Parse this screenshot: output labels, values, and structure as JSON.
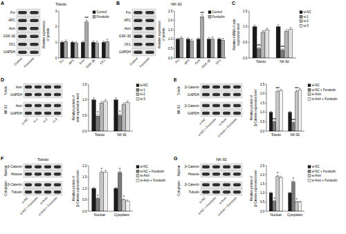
{
  "chart_data": [
    {
      "panel": "A",
      "type": "bar",
      "title": "Toledo",
      "blot": {
        "groups": [
          {
            "rows": [
              "Frz",
              "APC",
              "Axin",
              "GSK-3β",
              "CK1",
              "GAPDH"
            ]
          }
        ],
        "lanes": [
          "Control",
          "Forskolin"
        ]
      },
      "y_label": "Relative expression of protein",
      "categories": [
        "Frz",
        "APC",
        "Axin",
        "GSK-3β",
        "CK1"
      ],
      "series": [
        {
          "name": "Control",
          "color": "#1a1a1a",
          "values": [
            1,
            1,
            1,
            1,
            1
          ],
          "errors": [
            0.08,
            0.07,
            0.08,
            0.1,
            0.08
          ]
        },
        {
          "name": "Forskolin",
          "color": "#a6a6a6",
          "values": [
            1.05,
            0.95,
            2.3,
            0.95,
            1.05
          ],
          "errors": [
            0.1,
            0.08,
            0.12,
            0.12,
            0.15
          ]
        }
      ],
      "ylim": [
        0,
        3
      ],
      "yticks": [
        0,
        1,
        2,
        3
      ],
      "legend": "upper right",
      "grid": false,
      "annotations": [
        {
          "text": "***",
          "category": "Axin",
          "series": "Forskolin"
        }
      ]
    },
    {
      "panel": "B",
      "type": "bar",
      "title": "NK-92",
      "blot": {
        "groups": [
          {
            "rows": [
              "Frz",
              "APC",
              "Axin",
              "GSK-3β",
              "CK1",
              "GAPDH"
            ]
          }
        ],
        "lanes": [
          "Control",
          "Forskolin"
        ]
      },
      "y_label": "Relative expression of protein",
      "categories": [
        "Frz",
        "APC",
        "Axin",
        "GSK-3β",
        "CK1"
      ],
      "series": [
        {
          "name": "Control",
          "color": "#1a1a1a",
          "values": [
            1,
            1,
            1,
            1,
            1
          ],
          "errors": [
            0.06,
            0.07,
            0.06,
            0.08,
            0.07
          ]
        },
        {
          "name": "Forskolin",
          "color": "#a6a6a6",
          "values": [
            1.05,
            0.9,
            2.2,
            1.0,
            0.95
          ],
          "errors": [
            0.08,
            0.1,
            0.1,
            0.12,
            0.1
          ]
        }
      ],
      "ylim": [
        0,
        2.5
      ],
      "yticks": [
        {
          "value": 0,
          "label": "0.0"
        },
        0.5,
        {
          "value": 1,
          "label": "1.0"
        },
        1.5,
        {
          "value": 2,
          "label": "2.0"
        },
        2.5
      ],
      "legend": "upper right",
      "grid": false,
      "annotations": [
        {
          "text": "***",
          "category": "Axin",
          "series": "Forskolin"
        }
      ]
    },
    {
      "panel": "C",
      "type": "bar",
      "y_label": "Relative mRNA of axin expression level",
      "categories": [
        "Toledo",
        "NK-92"
      ],
      "series": [
        {
          "name": "si-NC",
          "color": "#1a1a1a",
          "values": [
            1,
            1
          ],
          "errors": [
            0.05,
            0.06
          ]
        },
        {
          "name": "si-1",
          "color": "#7a7a7a",
          "values": [
            0.3,
            0.25
          ],
          "errors": [
            0.04,
            0.04
          ]
        },
        {
          "name": "si-2",
          "color": "#b5b5b5",
          "values": [
            0.82,
            0.85
          ],
          "errors": [
            0.05,
            0.05
          ]
        },
        {
          "name": "si-3",
          "color": "#e0e0e0",
          "values": [
            0.9,
            0.92
          ],
          "errors": [
            0.05,
            0.05
          ]
        }
      ],
      "ylim": [
        0,
        1.5
      ],
      "yticks": [
        {
          "value": 0,
          "label": "0.0"
        },
        0.5,
        {
          "value": 1,
          "label": "1.0"
        },
        1.5
      ],
      "legend": "right",
      "grid": false,
      "annotations": [
        {
          "text": "***",
          "category": "Toledo",
          "series": "si-1"
        },
        {
          "text": "***",
          "category": "NK-92",
          "series": "si-1"
        }
      ]
    },
    {
      "panel": "D",
      "type": "bar",
      "blot": {
        "groups": [
          {
            "label": "Toledo",
            "rows": [
              "Axin",
              "GAPDH"
            ]
          },
          {
            "label": "NK-92",
            "rows": [
              "Axin",
              "GAPDH"
            ]
          }
        ],
        "lanes": [
          "si-NC",
          "si-1",
          "si-2",
          "si-3"
        ]
      },
      "y_label": "Relative protein of axin expression level",
      "categories": [
        "Toledo",
        "NK-92"
      ],
      "series": [
        {
          "name": "si-NC",
          "color": "#1a1a1a",
          "values": [
            1,
            1
          ],
          "errors": [
            0.06,
            0.06
          ]
        },
        {
          "name": "si-1",
          "color": "#7a7a7a",
          "values": [
            0.48,
            0.5
          ],
          "errors": [
            0.05,
            0.05
          ]
        },
        {
          "name": "si-2",
          "color": "#b5b5b5",
          "values": [
            0.9,
            0.85
          ],
          "errors": [
            0.05,
            0.05
          ]
        },
        {
          "name": "si-3",
          "color": "#e0e0e0",
          "values": [
            0.95,
            0.92
          ],
          "errors": [
            0.05,
            0.05
          ]
        }
      ],
      "ylim": [
        0,
        1.5
      ],
      "yticks": [
        {
          "value": 0,
          "label": "0.0"
        },
        0.5,
        {
          "value": 1,
          "label": "1.0"
        },
        1.5
      ],
      "legend": "right",
      "grid": false,
      "annotations": [
        {
          "text": "*",
          "category": "Toledo",
          "series": "si-1"
        },
        {
          "text": "*",
          "category": "NK-92",
          "series": "si-1"
        }
      ]
    },
    {
      "panel": "E",
      "type": "bar",
      "blot": {
        "groups": [
          {
            "label": "Toledo",
            "rows": [
              "β-Catenin",
              "GAPDH"
            ]
          },
          {
            "label": "NK-92",
            "rows": [
              "β-Catenin",
              "GAPDH"
            ]
          }
        ],
        "lanes": [
          "si-NC",
          "si-NC + Forskolin",
          "si-Axin",
          "si-Axin + Forskolin"
        ]
      },
      "y_label": "Relative protein of β-Catenin expression level",
      "categories": [
        "Toledo",
        "NK-92"
      ],
      "series": [
        {
          "name": "si-NC",
          "color": "#1a1a1a",
          "values": [
            1,
            1
          ],
          "errors": [
            0.05,
            0.05
          ]
        },
        {
          "name": "si-NC + Forskolin",
          "color": "#7a7a7a",
          "values": [
            0.5,
            0.45
          ],
          "errors": [
            0.04,
            0.04
          ]
        },
        {
          "name": "si-Axin",
          "color": "#c8c8c8",
          "values": [
            2.1,
            2.1
          ],
          "errors": [
            0.08,
            0.08
          ]
        },
        {
          "name": "si-Axin + Forskolin",
          "color": "#efefef",
          "values": [
            2.15,
            2.2
          ],
          "errors": [
            0.08,
            0.08
          ]
        }
      ],
      "ylim": [
        0,
        2.5
      ],
      "yticks": [
        {
          "value": 0,
          "label": "0.0"
        },
        0.5,
        {
          "value": 1,
          "label": "1.0"
        },
        1.5,
        {
          "value": 2,
          "label": "2.0"
        },
        2.5
      ],
      "legend": "right",
      "grid": false,
      "annotations": [
        {
          "text": "***",
          "category": "Toledo",
          "series": "si-NC + Forskolin"
        },
        {
          "text": "***",
          "category": "Toledo",
          "series": "si-Axin"
        },
        {
          "text": "***",
          "category": "NK-92",
          "series": "si-NC + Forskolin"
        },
        {
          "text": "***",
          "category": "NK-92",
          "series": "si-Axin"
        }
      ]
    },
    {
      "panel": "F",
      "type": "bar",
      "title": "Toledo",
      "blot": {
        "groups": [
          {
            "label": "Nuclear",
            "rows": [
              "β-Catenin",
              "Histone"
            ]
          },
          {
            "label": "Cytoplasm",
            "rows": [
              "β-Catenin",
              "Tubulin"
            ]
          }
        ],
        "lanes": [
          "si-NC",
          "si-NC + Forskolin",
          "si-Axin",
          "si-Axin + Forskolin"
        ]
      },
      "y_label": "Relative protein of β-Catenin expression level",
      "categories": [
        "Nuclear",
        "Cytoplasm"
      ],
      "series": [
        {
          "name": "si-NC",
          "color": "#1a1a1a",
          "values": [
            1,
            1
          ],
          "errors": [
            0.05,
            0.05
          ]
        },
        {
          "name": "si-NC + Forskolin",
          "color": "#7a7a7a",
          "values": [
            0.55,
            1.7
          ],
          "errors": [
            0.04,
            0.07
          ]
        },
        {
          "name": "si-Axin",
          "color": "#c8c8c8",
          "values": [
            1.7,
            0.5
          ],
          "errors": [
            0.07,
            0.04
          ]
        },
        {
          "name": "si-Axin + Forskolin",
          "color": "#efefef",
          "values": [
            1.72,
            0.45
          ],
          "errors": [
            0.07,
            0.04
          ]
        }
      ],
      "ylim": [
        0,
        2
      ],
      "yticks": [
        {
          "value": 0,
          "label": "0.0"
        },
        0.5,
        {
          "value": 1,
          "label": "1.0"
        },
        1.5,
        {
          "value": 2,
          "label": "2.0"
        }
      ],
      "legend": "right",
      "grid": false,
      "annotations": [
        {
          "text": "*",
          "category": "Nuclear",
          "series": "si-NC + Forskolin"
        },
        {
          "text": "*",
          "category": "Nuclear",
          "series": "si-Axin"
        },
        {
          "text": "*",
          "category": "Cytoplasm",
          "series": "si-NC + Forskolin"
        },
        {
          "text": "*",
          "category": "Cytoplasm",
          "series": "si-Axin"
        }
      ]
    },
    {
      "panel": "G",
      "type": "bar",
      "title": "NK-92",
      "blot": {
        "groups": [
          {
            "label": "Nuclear",
            "rows": [
              "β-Catenin",
              "Histone"
            ]
          },
          {
            "label": "Cytoplasm",
            "rows": [
              "β-Catenin",
              "Tubulin"
            ]
          }
        ],
        "lanes": [
          "si-NC",
          "si-NC + Forskolin",
          "si-Axin",
          "si-Axin + Forskolin"
        ]
      },
      "y_label": "Relative protein of β-Catenin expression level",
      "categories": [
        "Nuclear",
        "Cytoplasm"
      ],
      "series": [
        {
          "name": "si-NC",
          "color": "#1a1a1a",
          "values": [
            1,
            1
          ],
          "errors": [
            0.05,
            0.05
          ]
        },
        {
          "name": "si-NC + Forskolin",
          "color": "#7a7a7a",
          "values": [
            0.55,
            1.6
          ],
          "errors": [
            0.04,
            0.07
          ]
        },
        {
          "name": "si-Axin",
          "color": "#c8c8c8",
          "values": [
            1.9,
            0.5
          ],
          "errors": [
            0.07,
            0.04
          ]
        },
        {
          "name": "si-Axin + Forskolin",
          "color": "#efefef",
          "values": [
            1.85,
            0.5
          ],
          "errors": [
            0.07,
            0.04
          ]
        }
      ],
      "ylim": [
        0,
        2.5
      ],
      "yticks": [
        {
          "value": 0,
          "label": "0.0"
        },
        0.5,
        {
          "value": 1,
          "label": "1.0"
        },
        1.5,
        {
          "value": 2,
          "label": "2.0"
        },
        2.5
      ],
      "legend": "right",
      "grid": false,
      "annotations": [
        {
          "text": "*",
          "category": "Nuclear",
          "series": "si-NC + Forskolin"
        },
        {
          "text": "*",
          "category": "Nuclear",
          "series": "si-Axin"
        },
        {
          "text": "*",
          "category": "Cytoplasm",
          "series": "si-NC + Forskolin"
        },
        {
          "text": "*",
          "category": "Cytoplasm",
          "series": "si-Axin"
        }
      ]
    }
  ]
}
